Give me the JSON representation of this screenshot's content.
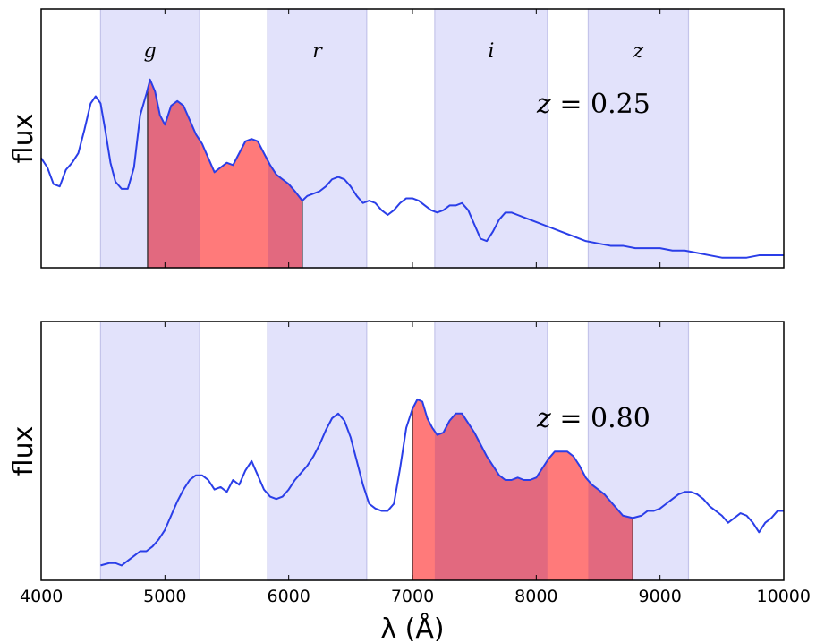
{
  "chart_data": {
    "type": "line",
    "xlabel": "λ (Å)",
    "xlim": [
      4000,
      10000
    ],
    "xticks": [
      "4000",
      "5000",
      "6000",
      "7000",
      "8000",
      "9000",
      "10000"
    ],
    "colors": {
      "spectrum": "#2a3ee8",
      "band_fill": "#e2e2fb",
      "band_edge": "#c4c4ea",
      "window_fill": "#ff7a7a",
      "overlap_fill": "#e2697f",
      "axis": "#000000"
    },
    "bands": [
      {
        "name": "g",
        "range": [
          4480,
          5280
        ]
      },
      {
        "name": "r",
        "range": [
          5830,
          6630
        ]
      },
      {
        "name": "i",
        "range": [
          7180,
          8090
        ]
      },
      {
        "name": "z",
        "range": [
          8420,
          9230
        ]
      }
    ],
    "panels": [
      {
        "ylabel": "flux",
        "annotation_var": "z",
        "annotation_val": "= 0.25",
        "ylim": [
          0,
          1
        ],
        "window": [
          4860,
          6110
        ],
        "show_band_labels": true,
        "spectrum": [
          [
            4000,
            0.44
          ],
          [
            4050,
            0.4
          ],
          [
            4100,
            0.33
          ],
          [
            4150,
            0.32
          ],
          [
            4200,
            0.39
          ],
          [
            4250,
            0.42
          ],
          [
            4300,
            0.46
          ],
          [
            4350,
            0.56
          ],
          [
            4400,
            0.67
          ],
          [
            4440,
            0.7
          ],
          [
            4480,
            0.67
          ],
          [
            4520,
            0.55
          ],
          [
            4560,
            0.42
          ],
          [
            4600,
            0.34
          ],
          [
            4650,
            0.31
          ],
          [
            4700,
            0.31
          ],
          [
            4750,
            0.4
          ],
          [
            4800,
            0.62
          ],
          [
            4850,
            0.71
          ],
          [
            4880,
            0.77
          ],
          [
            4920,
            0.72
          ],
          [
            4960,
            0.62
          ],
          [
            5000,
            0.58
          ],
          [
            5050,
            0.66
          ],
          [
            5100,
            0.68
          ],
          [
            5150,
            0.66
          ],
          [
            5200,
            0.6
          ],
          [
            5250,
            0.54
          ],
          [
            5300,
            0.5
          ],
          [
            5350,
            0.44
          ],
          [
            5400,
            0.38
          ],
          [
            5450,
            0.4
          ],
          [
            5500,
            0.42
          ],
          [
            5550,
            0.41
          ],
          [
            5600,
            0.46
          ],
          [
            5650,
            0.51
          ],
          [
            5700,
            0.52
          ],
          [
            5750,
            0.51
          ],
          [
            5800,
            0.46
          ],
          [
            5850,
            0.41
          ],
          [
            5900,
            0.37
          ],
          [
            5950,
            0.35
          ],
          [
            6000,
            0.33
          ],
          [
            6050,
            0.3
          ],
          [
            6110,
            0.26
          ],
          [
            6150,
            0.28
          ],
          [
            6200,
            0.29
          ],
          [
            6250,
            0.3
          ],
          [
            6300,
            0.32
          ],
          [
            6350,
            0.35
          ],
          [
            6400,
            0.36
          ],
          [
            6450,
            0.35
          ],
          [
            6500,
            0.32
          ],
          [
            6550,
            0.28
          ],
          [
            6600,
            0.25
          ],
          [
            6650,
            0.26
          ],
          [
            6700,
            0.25
          ],
          [
            6750,
            0.22
          ],
          [
            6800,
            0.2
          ],
          [
            6850,
            0.22
          ],
          [
            6900,
            0.25
          ],
          [
            6950,
            0.27
          ],
          [
            7000,
            0.27
          ],
          [
            7050,
            0.26
          ],
          [
            7100,
            0.24
          ],
          [
            7150,
            0.22
          ],
          [
            7200,
            0.21
          ],
          [
            7250,
            0.22
          ],
          [
            7300,
            0.24
          ],
          [
            7350,
            0.24
          ],
          [
            7400,
            0.25
          ],
          [
            7450,
            0.22
          ],
          [
            7500,
            0.16
          ],
          [
            7550,
            0.1
          ],
          [
            7600,
            0.09
          ],
          [
            7650,
            0.13
          ],
          [
            7700,
            0.18
          ],
          [
            7750,
            0.21
          ],
          [
            7800,
            0.21
          ],
          [
            7850,
            0.2
          ],
          [
            7900,
            0.19
          ],
          [
            7950,
            0.18
          ],
          [
            8000,
            0.17
          ],
          [
            8100,
            0.15
          ],
          [
            8200,
            0.13
          ],
          [
            8300,
            0.11
          ],
          [
            8400,
            0.09
          ],
          [
            8500,
            0.08
          ],
          [
            8600,
            0.07
          ],
          [
            8700,
            0.07
          ],
          [
            8800,
            0.06
          ],
          [
            8900,
            0.06
          ],
          [
            9000,
            0.06
          ],
          [
            9100,
            0.05
          ],
          [
            9200,
            0.05
          ],
          [
            9300,
            0.04
          ],
          [
            9400,
            0.03
          ],
          [
            9500,
            0.02
          ],
          [
            9600,
            0.02
          ],
          [
            9700,
            0.02
          ],
          [
            9800,
            0.03
          ],
          [
            9900,
            0.03
          ],
          [
            10000,
            0.03
          ]
        ]
      },
      {
        "ylabel": "flux",
        "annotation_var": "z",
        "annotation_val": "= 0.80",
        "ylim": [
          0,
          1
        ],
        "window": [
          7000,
          8780
        ],
        "show_band_labels": false,
        "spectrum": [
          [
            4480,
            0.04
          ],
          [
            4550,
            0.05
          ],
          [
            4600,
            0.05
          ],
          [
            4650,
            0.04
          ],
          [
            4700,
            0.06
          ],
          [
            4750,
            0.08
          ],
          [
            4800,
            0.1
          ],
          [
            4850,
            0.1
          ],
          [
            4900,
            0.12
          ],
          [
            4950,
            0.15
          ],
          [
            5000,
            0.19
          ],
          [
            5050,
            0.25
          ],
          [
            5100,
            0.31
          ],
          [
            5150,
            0.36
          ],
          [
            5200,
            0.4
          ],
          [
            5250,
            0.42
          ],
          [
            5300,
            0.42
          ],
          [
            5350,
            0.4
          ],
          [
            5400,
            0.36
          ],
          [
            5450,
            0.37
          ],
          [
            5500,
            0.35
          ],
          [
            5550,
            0.4
          ],
          [
            5600,
            0.38
          ],
          [
            5650,
            0.44
          ],
          [
            5700,
            0.48
          ],
          [
            5750,
            0.42
          ],
          [
            5800,
            0.36
          ],
          [
            5850,
            0.33
          ],
          [
            5900,
            0.32
          ],
          [
            5950,
            0.33
          ],
          [
            6000,
            0.36
          ],
          [
            6050,
            0.4
          ],
          [
            6100,
            0.43
          ],
          [
            6150,
            0.46
          ],
          [
            6200,
            0.5
          ],
          [
            6250,
            0.55
          ],
          [
            6300,
            0.61
          ],
          [
            6350,
            0.66
          ],
          [
            6400,
            0.68
          ],
          [
            6450,
            0.65
          ],
          [
            6500,
            0.58
          ],
          [
            6550,
            0.48
          ],
          [
            6600,
            0.38
          ],
          [
            6650,
            0.3
          ],
          [
            6700,
            0.28
          ],
          [
            6750,
            0.27
          ],
          [
            6800,
            0.27
          ],
          [
            6850,
            0.3
          ],
          [
            6900,
            0.45
          ],
          [
            6950,
            0.62
          ],
          [
            7000,
            0.7
          ],
          [
            7040,
            0.74
          ],
          [
            7080,
            0.73
          ],
          [
            7120,
            0.66
          ],
          [
            7160,
            0.62
          ],
          [
            7200,
            0.59
          ],
          [
            7250,
            0.6
          ],
          [
            7300,
            0.65
          ],
          [
            7350,
            0.68
          ],
          [
            7400,
            0.68
          ],
          [
            7450,
            0.64
          ],
          [
            7500,
            0.6
          ],
          [
            7550,
            0.55
          ],
          [
            7600,
            0.5
          ],
          [
            7650,
            0.46
          ],
          [
            7700,
            0.42
          ],
          [
            7750,
            0.4
          ],
          [
            7800,
            0.4
          ],
          [
            7850,
            0.41
          ],
          [
            7900,
            0.4
          ],
          [
            7950,
            0.4
          ],
          [
            8000,
            0.41
          ],
          [
            8050,
            0.45
          ],
          [
            8100,
            0.49
          ],
          [
            8150,
            0.52
          ],
          [
            8200,
            0.52
          ],
          [
            8250,
            0.52
          ],
          [
            8300,
            0.5
          ],
          [
            8350,
            0.46
          ],
          [
            8400,
            0.41
          ],
          [
            8450,
            0.38
          ],
          [
            8500,
            0.36
          ],
          [
            8550,
            0.34
          ],
          [
            8600,
            0.31
          ],
          [
            8650,
            0.28
          ],
          [
            8700,
            0.25
          ],
          [
            8780,
            0.24
          ],
          [
            8850,
            0.25
          ],
          [
            8900,
            0.27
          ],
          [
            8950,
            0.27
          ],
          [
            9000,
            0.28
          ],
          [
            9050,
            0.3
          ],
          [
            9100,
            0.32
          ],
          [
            9150,
            0.34
          ],
          [
            9200,
            0.35
          ],
          [
            9250,
            0.35
          ],
          [
            9300,
            0.34
          ],
          [
            9350,
            0.32
          ],
          [
            9400,
            0.29
          ],
          [
            9450,
            0.27
          ],
          [
            9500,
            0.25
          ],
          [
            9550,
            0.22
          ],
          [
            9600,
            0.24
          ],
          [
            9650,
            0.26
          ],
          [
            9700,
            0.25
          ],
          [
            9750,
            0.22
          ],
          [
            9800,
            0.18
          ],
          [
            9850,
            0.22
          ],
          [
            9900,
            0.24
          ],
          [
            9950,
            0.27
          ],
          [
            10000,
            0.27
          ]
        ]
      }
    ]
  }
}
